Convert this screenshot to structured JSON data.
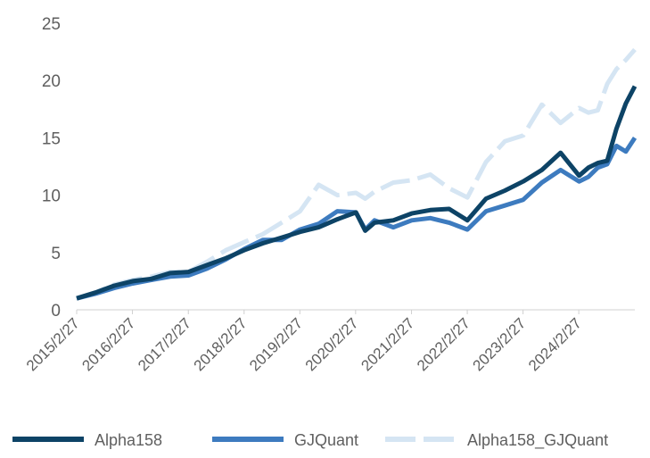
{
  "chart_data": {
    "type": "line",
    "title": "",
    "xlabel": "",
    "ylabel": "",
    "ylim": [
      0,
      25
    ],
    "yticks": [
      0,
      5,
      10,
      15,
      20,
      25
    ],
    "xlim": [
      "2015-02-27",
      "2025-02-28"
    ],
    "xtick_labels": [
      "2015/2/27",
      "2016/2/27",
      "2017/2/27",
      "2018/2/27",
      "2019/2/27",
      "2020/2/27",
      "2021/2/27",
      "2022/2/27",
      "2023/2/27",
      "2024/2/27"
    ],
    "xtick_dates": [
      "2015-02-27",
      "2016-02-27",
      "2017-02-27",
      "2018-02-27",
      "2019-02-27",
      "2020-02-27",
      "2021-02-27",
      "2022-02-27",
      "2023-02-27",
      "2024-02-27"
    ],
    "grid": false,
    "legend_position": "bottom",
    "series": [
      {
        "name": "Alpha158",
        "color": "#0d4366",
        "style": "solid",
        "x": [
          "2015-02-27",
          "2015-06-30",
          "2015-10-31",
          "2016-02-29",
          "2016-06-30",
          "2016-10-31",
          "2017-02-28",
          "2017-06-30",
          "2017-10-31",
          "2018-02-28",
          "2018-06-30",
          "2018-10-31",
          "2019-02-28",
          "2019-06-30",
          "2019-10-31",
          "2020-02-29",
          "2020-04-30",
          "2020-06-30",
          "2020-10-31",
          "2021-02-28",
          "2021-06-30",
          "2021-10-31",
          "2022-02-28",
          "2022-06-30",
          "2022-10-31",
          "2023-02-28",
          "2023-06-30",
          "2023-10-31",
          "2024-02-29",
          "2024-04-30",
          "2024-06-30",
          "2024-08-31",
          "2024-10-31",
          "2024-12-31",
          "2025-02-28"
        ],
        "values": [
          1.0,
          1.5,
          2.1,
          2.5,
          2.7,
          3.2,
          3.3,
          3.9,
          4.5,
          5.2,
          5.8,
          6.3,
          6.8,
          7.2,
          7.9,
          8.5,
          6.9,
          7.6,
          7.8,
          8.4,
          8.7,
          8.8,
          7.8,
          9.7,
          10.4,
          11.2,
          12.2,
          13.7,
          11.7,
          12.4,
          12.8,
          13.0,
          15.8,
          18.0,
          19.5
        ]
      },
      {
        "name": "GJQuant",
        "color": "#3d7bbf",
        "style": "solid",
        "x": [
          "2015-02-27",
          "2015-06-30",
          "2015-10-31",
          "2016-02-29",
          "2016-06-30",
          "2016-10-31",
          "2017-02-28",
          "2017-06-30",
          "2017-10-31",
          "2018-02-28",
          "2018-06-30",
          "2018-10-31",
          "2019-02-28",
          "2019-06-30",
          "2019-10-31",
          "2020-02-29",
          "2020-04-30",
          "2020-06-30",
          "2020-10-31",
          "2021-02-28",
          "2021-06-30",
          "2021-10-31",
          "2022-02-28",
          "2022-06-30",
          "2022-10-31",
          "2023-02-28",
          "2023-06-30",
          "2023-10-31",
          "2024-02-29",
          "2024-04-30",
          "2024-06-30",
          "2024-08-31",
          "2024-10-31",
          "2024-12-31",
          "2025-02-28"
        ],
        "values": [
          1.0,
          1.4,
          1.9,
          2.3,
          2.6,
          2.9,
          3.0,
          3.6,
          4.4,
          5.3,
          6.1,
          6.1,
          7.0,
          7.5,
          8.6,
          8.5,
          7.0,
          7.8,
          7.2,
          7.8,
          8.0,
          7.6,
          7.0,
          8.6,
          9.1,
          9.6,
          11.1,
          12.2,
          11.2,
          11.6,
          12.4,
          12.7,
          14.3,
          13.8,
          15.0
        ]
      },
      {
        "name": "Alpha158_GJQuant",
        "color": "#d5e5f3",
        "style": "dashed",
        "x": [
          "2015-02-27",
          "2015-06-30",
          "2015-10-31",
          "2016-02-29",
          "2016-06-30",
          "2016-10-31",
          "2017-02-28",
          "2017-06-30",
          "2017-10-31",
          "2018-02-28",
          "2018-06-30",
          "2018-10-31",
          "2019-02-28",
          "2019-06-30",
          "2019-10-31",
          "2020-02-29",
          "2020-04-30",
          "2020-06-30",
          "2020-10-31",
          "2021-02-28",
          "2021-06-30",
          "2021-10-31",
          "2022-02-28",
          "2022-06-30",
          "2022-10-31",
          "2023-02-28",
          "2023-06-30",
          "2023-10-31",
          "2024-02-29",
          "2024-04-30",
          "2024-06-30",
          "2024-08-31",
          "2024-10-31",
          "2024-12-31",
          "2025-02-28"
        ],
        "values": [
          1.0,
          1.5,
          2.2,
          2.6,
          2.9,
          3.3,
          3.3,
          4.2,
          5.2,
          5.9,
          6.6,
          7.6,
          8.6,
          10.9,
          10.0,
          10.2,
          9.7,
          10.3,
          11.1,
          11.3,
          11.8,
          10.6,
          9.8,
          12.9,
          14.7,
          15.2,
          17.9,
          16.3,
          17.6,
          17.2,
          17.4,
          19.7,
          21.0,
          21.8,
          22.7
        ]
      }
    ]
  }
}
